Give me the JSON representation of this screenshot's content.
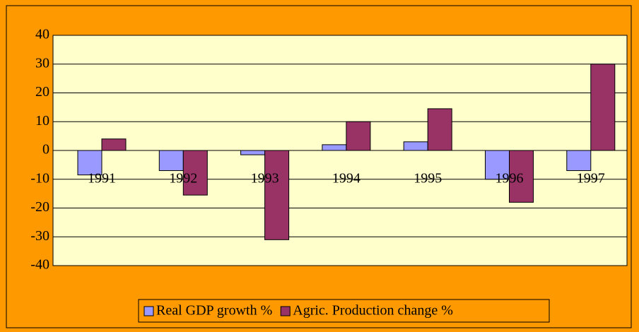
{
  "chart_data": {
    "type": "bar",
    "categories": [
      "1991",
      "1992",
      "1993",
      "1994",
      "1995",
      "1996",
      "1997"
    ],
    "series": [
      {
        "name": "Real GDP growth %",
        "color": "#9999ff",
        "values": [
          -8.5,
          -7,
          -1.5,
          2,
          3,
          -10,
          -7
        ]
      },
      {
        "name": "Agric. Production change %",
        "color": "#993366",
        "values": [
          4,
          -15.5,
          -31,
          10,
          14.5,
          -18,
          30
        ]
      }
    ],
    "ylim": [
      -40,
      40
    ],
    "yticks": [
      -40,
      -30,
      -20,
      -10,
      0,
      10,
      20,
      30,
      40
    ],
    "grid": true,
    "legend": "bottom"
  }
}
